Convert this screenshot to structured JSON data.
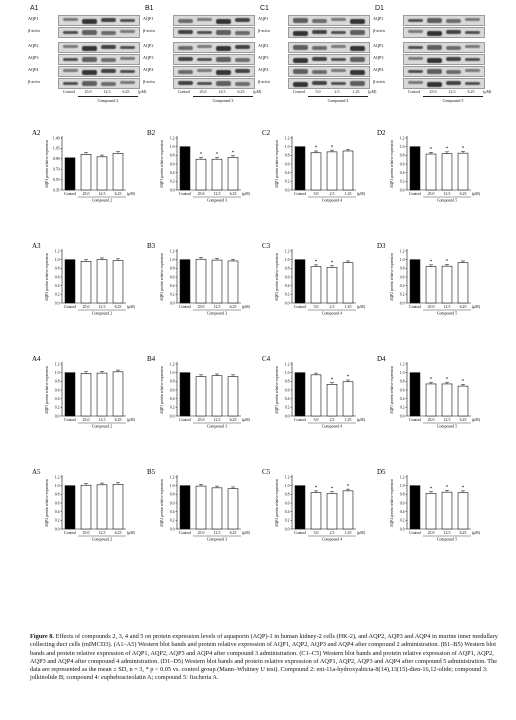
{
  "blot_rows": [
    "AQP1",
    "β-actin",
    "AQP2",
    "AQP3",
    "AQP4",
    "β-actin"
  ],
  "blot_columns": [
    {
      "panel": "A1",
      "lanes": [
        "Control",
        "25.0",
        "12.5",
        "6.25"
      ],
      "unit": "(μM)",
      "group": "Compound 2"
    },
    {
      "panel": "B1",
      "lanes": [
        "Control",
        "25.0",
        "12.5",
        "6.25"
      ],
      "unit": "(μM)",
      "group": "Compound 3"
    },
    {
      "panel": "C1",
      "lanes": [
        "Control",
        "5.0",
        "2.5",
        "1.25"
      ],
      "unit": "(μM)",
      "group": "Compound 4"
    },
    {
      "panel": "D1",
      "lanes": [
        "Control",
        "25.0",
        "12.5",
        "6.25"
      ],
      "unit": "(μM)",
      "group": "Compound 5"
    }
  ],
  "chart_data": [
    {
      "panel": "A2",
      "type": "bar",
      "ylabel": "AQP1 protein relative expression",
      "categories": [
        "Control",
        "25.0",
        "12.5",
        "6.25"
      ],
      "values": [
        1.0,
        1.07,
        1.02,
        1.09
      ],
      "ylim": [
        0.35,
        1.4
      ],
      "yticks": [
        "0.35",
        "0.55",
        "0.70",
        "0.90",
        "1.05",
        "1.40"
      ],
      "stars": [
        false,
        false,
        false,
        false
      ],
      "group": "Compound 2",
      "unit": "(μM)"
    },
    {
      "panel": "B2",
      "type": "bar",
      "ylabel": "AQP1 protein relative expression",
      "categories": [
        "Control",
        "25.0",
        "12.5",
        "6.25"
      ],
      "values": [
        1.0,
        0.71,
        0.71,
        0.75
      ],
      "ylim": [
        0,
        1.2
      ],
      "yticks": [
        "0.0",
        "0.2",
        "0.4",
        "0.6",
        "0.8",
        "1.0",
        "1.2"
      ],
      "stars": [
        false,
        true,
        true,
        true
      ],
      "group": "Compound 3",
      "unit": "(μM)"
    },
    {
      "panel": "C2",
      "type": "bar",
      "ylabel": "AQP1 protein relative expression",
      "categories": [
        "Control",
        "5.0",
        "2.5",
        "1.25"
      ],
      "values": [
        1.0,
        0.86,
        0.88,
        0.9
      ],
      "ylim": [
        0,
        1.2
      ],
      "yticks": [
        "0.0",
        "0.2",
        "0.4",
        "0.6",
        "0.8",
        "1.0",
        "1.2"
      ],
      "stars": [
        false,
        true,
        true,
        false
      ],
      "group": "Compound 4",
      "unit": "(μM)"
    },
    {
      "panel": "D2",
      "type": "bar",
      "ylabel": "AQP1 protein relative expression",
      "categories": [
        "Control",
        "25.0",
        "12.5",
        "6.25"
      ],
      "values": [
        1.0,
        0.83,
        0.84,
        0.85
      ],
      "ylim": [
        0,
        1.2
      ],
      "yticks": [
        "0.0",
        "0.2",
        "0.4",
        "0.6",
        "0.8",
        "1.0",
        "1.2"
      ],
      "stars": [
        false,
        true,
        true,
        true
      ],
      "group": "Compound 5",
      "unit": "(μM)"
    },
    {
      "panel": "A3",
      "type": "bar",
      "ylabel": "AQP2 protein relative expression",
      "categories": [
        "Control",
        "25.0",
        "12.5",
        "6.25"
      ],
      "values": [
        1.0,
        0.96,
        1.0,
        0.98
      ],
      "ylim": [
        0,
        1.2
      ],
      "yticks": [
        "0.0",
        "0.2",
        "0.4",
        "0.6",
        "0.8",
        "1.0",
        "1.2"
      ],
      "stars": [
        false,
        false,
        false,
        false
      ],
      "group": "Compound 2",
      "unit": "(μM)"
    },
    {
      "panel": "B3",
      "type": "bar",
      "ylabel": "AQP2 protein relative expression",
      "categories": [
        "Control",
        "25.0",
        "12.5",
        "6.25"
      ],
      "values": [
        1.0,
        1.01,
        0.99,
        0.97
      ],
      "ylim": [
        0,
        1.2
      ],
      "yticks": [
        "0.0",
        "0.2",
        "0.4",
        "0.6",
        "0.8",
        "1.0",
        "1.2"
      ],
      "stars": [
        false,
        false,
        false,
        false
      ],
      "group": "Compound 3",
      "unit": "(μM)"
    },
    {
      "panel": "C3",
      "type": "bar",
      "ylabel": "AQP2 protein relative expression",
      "categories": [
        "Control",
        "5.0",
        "2.5",
        "1.25"
      ],
      "values": [
        1.0,
        0.84,
        0.82,
        0.93
      ],
      "ylim": [
        0,
        1.2
      ],
      "yticks": [
        "0.0",
        "0.2",
        "0.4",
        "0.6",
        "0.8",
        "1.0",
        "1.2"
      ],
      "stars": [
        false,
        true,
        true,
        false
      ],
      "group": "Compound 4",
      "unit": "(μM)"
    },
    {
      "panel": "D3",
      "type": "bar",
      "ylabel": "AQP2 protein relative expression",
      "categories": [
        "Control",
        "25.0",
        "12.5",
        "6.25"
      ],
      "values": [
        1.0,
        0.84,
        0.85,
        0.93
      ],
      "ylim": [
        0,
        1.2
      ],
      "yticks": [
        "0.0",
        "0.2",
        "0.4",
        "0.6",
        "0.8",
        "1.0",
        "1.2"
      ],
      "stars": [
        false,
        true,
        true,
        false
      ],
      "group": "Compound 5",
      "unit": "(μM)"
    },
    {
      "panel": "A4",
      "type": "bar",
      "ylabel": "AQP3 protein relative expression",
      "categories": [
        "Control",
        "25.0",
        "12.5",
        "6.25"
      ],
      "values": [
        1.0,
        0.98,
        0.99,
        1.02
      ],
      "ylim": [
        0,
        1.2
      ],
      "yticks": [
        "0.0",
        "0.2",
        "0.4",
        "0.6",
        "0.8",
        "1.0",
        "1.2"
      ],
      "stars": [
        false,
        false,
        false,
        false
      ],
      "group": "Compound 2",
      "unit": "(μM)"
    },
    {
      "panel": "B4",
      "type": "bar",
      "ylabel": "AQP3 protein relative expression",
      "categories": [
        "Control",
        "25.0",
        "12.5",
        "6.25"
      ],
      "values": [
        1.0,
        0.91,
        0.93,
        0.91
      ],
      "ylim": [
        0,
        1.2
      ],
      "yticks": [
        "0.0",
        "0.2",
        "0.4",
        "0.6",
        "0.8",
        "1.0",
        "1.2"
      ],
      "stars": [
        false,
        false,
        false,
        false
      ],
      "group": "Compound 3",
      "unit": "(μM)"
    },
    {
      "panel": "C4",
      "type": "bar",
      "ylabel": "AQP3 protein relative expression",
      "categories": [
        "Control",
        "5.0",
        "2.5",
        "1.25"
      ],
      "values": [
        1.0,
        0.95,
        0.73,
        0.79
      ],
      "ylim": [
        0,
        1.2
      ],
      "yticks": [
        "0.0",
        "0.2",
        "0.4",
        "0.6",
        "0.8",
        "1.0",
        "1.2"
      ],
      "stars": [
        false,
        false,
        true,
        true
      ],
      "group": "Compound 4",
      "unit": "(μM)"
    },
    {
      "panel": "D4",
      "type": "bar",
      "ylabel": "AQP3 protein relative expression",
      "categories": [
        "Control",
        "25.0",
        "12.5",
        "6.25"
      ],
      "values": [
        1.0,
        0.74,
        0.74,
        0.69
      ],
      "ylim": [
        0,
        1.2
      ],
      "yticks": [
        "0.0",
        "0.2",
        "0.4",
        "0.6",
        "0.8",
        "1.0",
        "1.2"
      ],
      "stars": [
        false,
        true,
        true,
        true
      ],
      "group": "Compound 5",
      "unit": "(μM)"
    },
    {
      "panel": "A5",
      "type": "bar",
      "ylabel": "AQP4 protein relative expression",
      "categories": [
        "Control",
        "25.0",
        "12.5",
        "6.25"
      ],
      "values": [
        1.0,
        1.01,
        1.02,
        1.03
      ],
      "ylim": [
        0,
        1.2
      ],
      "yticks": [
        "0.0",
        "0.2",
        "0.4",
        "0.6",
        "0.8",
        "1.0",
        "1.2"
      ],
      "stars": [
        false,
        false,
        false,
        false
      ],
      "group": "Compound 2",
      "unit": "(μM)"
    },
    {
      "panel": "B5",
      "type": "bar",
      "ylabel": "AQP4 protein relative expression",
      "categories": [
        "Control",
        "25.0",
        "12.5",
        "6.25"
      ],
      "values": [
        1.0,
        0.99,
        0.95,
        0.93
      ],
      "ylim": [
        0,
        1.2
      ],
      "yticks": [
        "0.0",
        "0.2",
        "0.4",
        "0.6",
        "0.8",
        "1.0",
        "1.2"
      ],
      "stars": [
        false,
        false,
        false,
        false
      ],
      "group": "Compound 3",
      "unit": "(μM)"
    },
    {
      "panel": "C5",
      "type": "bar",
      "ylabel": "AQP4 protein relative expression",
      "categories": [
        "Control",
        "5.0",
        "2.5",
        "1.25"
      ],
      "values": [
        1.0,
        0.84,
        0.82,
        0.88
      ],
      "ylim": [
        0,
        1.2
      ],
      "yticks": [
        "0.0",
        "0.2",
        "0.4",
        "0.6",
        "0.8",
        "1.0",
        "1.2"
      ],
      "stars": [
        false,
        true,
        true,
        true
      ],
      "group": "Compound 4",
      "unit": "(μM)"
    },
    {
      "panel": "D5",
      "type": "bar",
      "ylabel": "AQP4 protein relative expression",
      "categories": [
        "Control",
        "25.0",
        "12.5",
        "6.25"
      ],
      "values": [
        1.0,
        0.82,
        0.85,
        0.84
      ],
      "ylim": [
        0,
        1.2
      ],
      "yticks": [
        "0.0",
        "0.2",
        "0.4",
        "0.6",
        "0.8",
        "1.0",
        "1.2"
      ],
      "stars": [
        false,
        true,
        true,
        true
      ],
      "group": "Compound 5",
      "unit": "(μM)"
    }
  ],
  "caption": {
    "figure_label": "Figure 8.",
    "text": "Effects of compounds 2, 3, 4 and 5 on protein expression levels of aquaporin (AQP)-1 in human kidney-2 cells (HK-2), and AQP2, AQP3 and AQP4 in murine inner medullary collecting duct cells (mIMCD3). (A1–A5) Western blot bands and protein relative expression of AQP1, AQP2, AQP3 and AQP4 after compound 2 administration. (B1–B5) Western blot bands and protein relative expression of AQP1, AQP2, AQP3 and AQP4 after compound 3 administration. (C1–C5) Western blot bands and protein relative expression of AQP1, AQP2, AQP3 and AQP4 after compound 4 administration. (D1–D5) Western blot bands and protein relative expression of AQP1, AQP2, AQP3 and AQP4 after compound 5 administration. The data are represented as the mean ± SD, n = 3, * p < 0.05 vs. control group (Mann–Whitney U test). Compound 2: ent-11a-hydroxyabicta-8(14),13(15)-dien-16,12-olide; compound 3: jolkinolide B; compound 4: euphebracteolatin A; compound 5: fischeria A."
  }
}
